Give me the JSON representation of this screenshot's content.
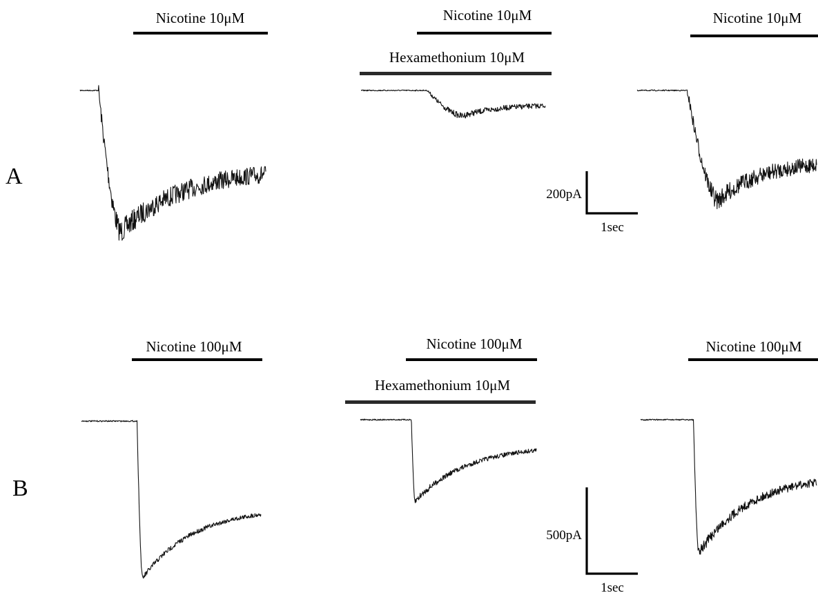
{
  "panels": [
    {
      "letter": "A",
      "scale": {
        "current": "200pA",
        "time": "1sec"
      },
      "recordings": [
        {
          "nicotine": "Nicotine 10μM",
          "hexamethonium": null,
          "response": {
            "onset": 0.1,
            "peak_depth": 1.0,
            "peak_time": 0.22,
            "end_depth": 0.55,
            "noise": 0.16
          }
        },
        {
          "nicotine": "Nicotine 10μM",
          "hexamethonium": "Hexamethonium 10μM",
          "response": {
            "onset": 0.36,
            "peak_depth": 0.18,
            "peak_time": 0.55,
            "end_depth": 0.1,
            "noise": 0.045
          }
        },
        {
          "nicotine": "Nicotine 10μM",
          "hexamethonium": null,
          "response": {
            "onset": 0.28,
            "peak_depth": 0.78,
            "peak_time": 0.45,
            "end_depth": 0.5,
            "noise": 0.13
          }
        }
      ]
    },
    {
      "letter": "B",
      "scale": {
        "current": "500pA",
        "time": "1sec"
      },
      "recordings": [
        {
          "nicotine": "Nicotine 100μM",
          "hexamethonium": null,
          "response": {
            "onset": 0.31,
            "peak_depth": 1.0,
            "peak_time": 0.34,
            "end_depth": 0.55,
            "noise": 0.035
          }
        },
        {
          "nicotine": "Nicotine 100μM",
          "hexamethonium": "Hexamethonium 10μM",
          "response": {
            "onset": 0.29,
            "peak_depth": 0.52,
            "peak_time": 0.31,
            "end_depth": 0.16,
            "noise": 0.04
          }
        },
        {
          "nicotine": "Nicotine 100μM",
          "hexamethonium": null,
          "response": {
            "onset": 0.3,
            "peak_depth": 0.85,
            "peak_time": 0.33,
            "end_depth": 0.35,
            "noise": 0.07
          }
        }
      ]
    }
  ]
}
